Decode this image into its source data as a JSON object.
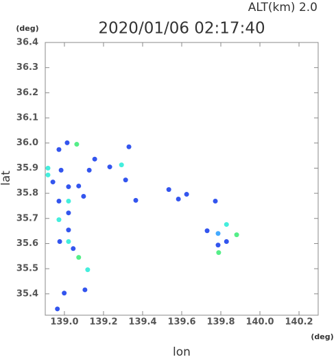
{
  "chart_data": {
    "type": "scatter",
    "title": "2020/01/06 02:17:40",
    "subtitle": "ALT(km) 2.0",
    "y_unit": "(deg)",
    "x_unit": "(deg)",
    "x_label": "lon",
    "y_label": "lat",
    "xlim": [
      138.902,
      140.298
    ],
    "ylim": [
      35.315,
      36.4
    ],
    "xticks": [
      {
        "value": 139,
        "label": "139.0"
      },
      139.2,
      139.4,
      139.6,
      139.8,
      {
        "value": 140,
        "label": "140.0"
      },
      140.2
    ],
    "yticks": [
      {
        "value": 35.4,
        "label": "35.4"
      },
      35.5,
      35.6,
      35.7,
      35.8,
      35.9,
      {
        "value": 36,
        "label": "36.0"
      },
      36.1,
      36.2,
      36.3,
      36.4
    ],
    "x": [
      138.972,
      139.014,
      139.063,
      138.916,
      138.916,
      138.983,
      138.941,
      139.021,
      139.021,
      138.972,
      138.972,
      139.021,
      139.021,
      138.976,
      139.021,
      139.045,
      139.073,
      139.119,
      138.999,
      138.964,
      139.105,
      139.127,
      139.155,
      139.232,
      139.292,
      139.313,
      139.365,
      139.534,
      139.583,
      139.625,
      139.772,
      139.73,
      139.786,
      139.829,
      139.881,
      139.829,
      139.786,
      139.789,
      139.33,
      139.098,
      139.073
    ],
    "values": [
      35.974,
      36.001,
      35.995,
      35.9,
      35.873,
      35.892,
      35.845,
      35.826,
      35.769,
      35.769,
      35.695,
      35.722,
      35.654,
      35.608,
      35.608,
      35.58,
      35.545,
      35.496,
      35.403,
      35.34,
      35.416,
      35.892,
      35.936,
      35.905,
      35.913,
      35.853,
      35.772,
      35.815,
      35.777,
      35.796,
      35.769,
      35.651,
      35.64,
      35.676,
      35.635,
      35.608,
      35.594,
      35.564,
      35.985,
      35.788,
      35.829
    ],
    "colors": [
      "#3355ee",
      "#3355ee",
      "#55ee88",
      "#44eedd",
      "#44eedd",
      "#3355ee",
      "#3355ee",
      "#3355ee",
      "#44eedd",
      "#3355ee",
      "#44eedd",
      "#3355ee",
      "#3355ee",
      "#3355ee",
      "#44eedd",
      "#3355ee",
      "#55ee88",
      "#44eedd",
      "#3355ee",
      "#3355ee",
      "#3355ee",
      "#3355ee",
      "#3355ee",
      "#3355ee",
      "#44eedd",
      "#3355ee",
      "#3355ee",
      "#3355ee",
      "#3355ee",
      "#3355ee",
      "#3355ee",
      "#3355ee",
      "#44aaff",
      "#44eedd",
      "#55ee88",
      "#3355ee",
      "#3355ee",
      "#55ee88",
      "#3355ee",
      "#3355ee",
      "#3355ee"
    ]
  }
}
